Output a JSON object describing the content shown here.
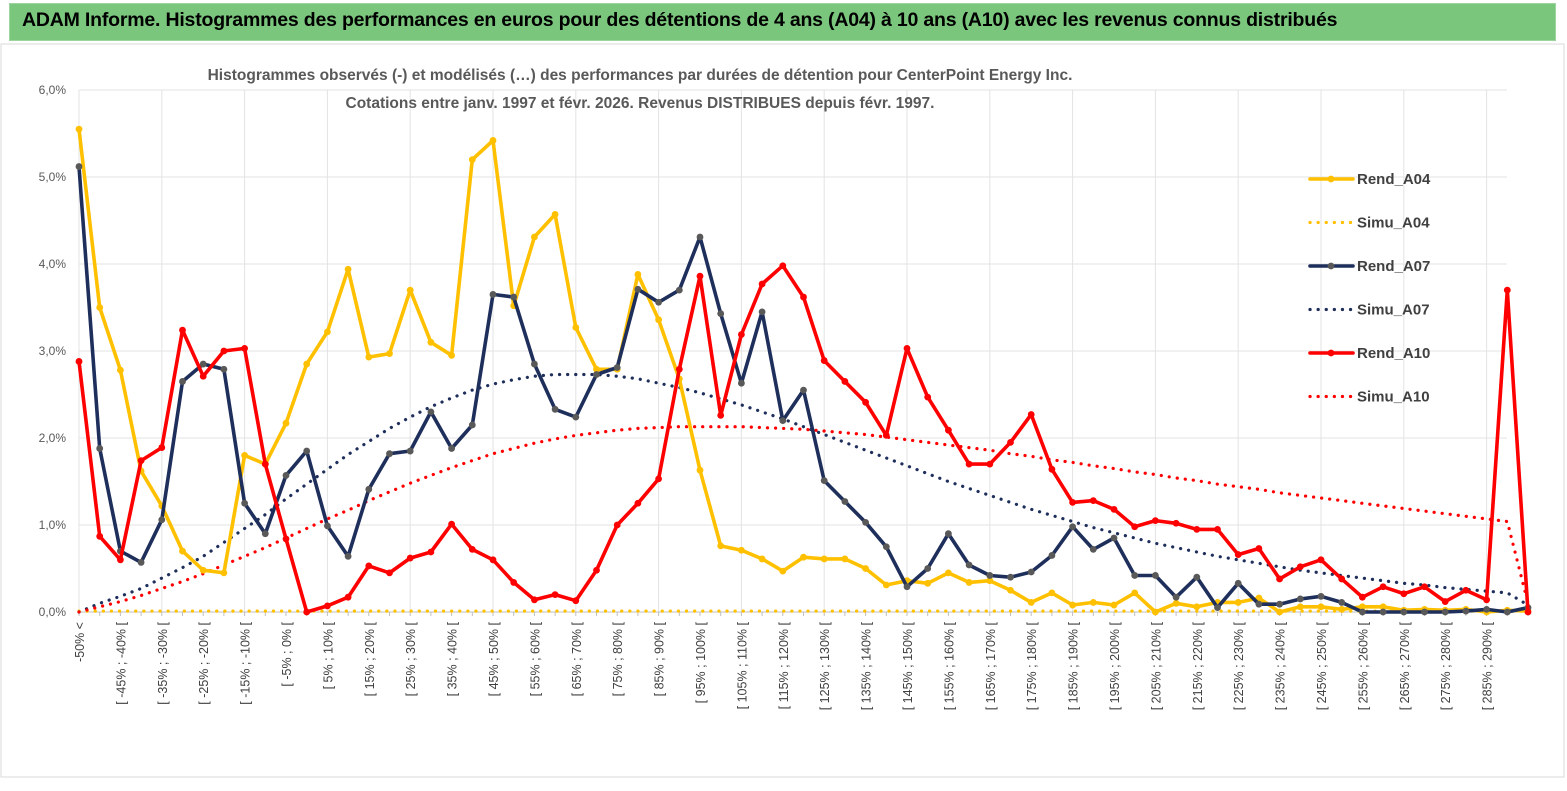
{
  "banner": {
    "title": "ADAM Informe. Histogrammes des performances en euros pour des détentions de 4 ans (A04) à 10 ans (A10) avec les revenus connus distribués"
  },
  "chart_data": {
    "type": "line",
    "title_line1": "Histogrammes observés (-) et modélisés (…) des performances par durées de détention pour CenterPoint Energy Inc.",
    "title_line2": "Cotations entre janv. 1997 et févr.  2026. Revenus DISTRIBUES depuis févr. 1997.",
    "ylim": [
      0,
      6
    ],
    "yticks": [
      "0,0%",
      "1,0%",
      "2,0%",
      "3,0%",
      "4,0%",
      "5,0%",
      "6,0%"
    ],
    "grid": true,
    "legend_position": "right",
    "x_labels": [
      "-50% <",
      "[ -45% ; -40% [",
      "[ -35% ; -30% [",
      "[ -25% ; -20% [",
      "[ -15% ; -10% [",
      "[ -5% ; 0% [",
      "[ 5% ; 10% [",
      "[ 15% ; 20% [",
      "[ 25% ; 30% [",
      "[ 35% ; 40% [",
      "[ 45% ; 50% [",
      "[ 55% ; 60% [",
      "[ 65% ; 70% [",
      "[ 75% ; 80% [",
      "[ 85% ; 90% [",
      "[ 95% ; 100% [",
      "[ 105% ; 110% [",
      "[ 115% ; 120% [",
      "[ 125% ; 130% [",
      "[ 135% ; 140% [",
      "[ 145% ; 150% [",
      "[ 155% ; 160% [",
      "[ 165% ; 170% [",
      "[ 175% ; 180% [",
      "[ 185% ; 190% [",
      "[ 195% ; 200% [",
      "[ 205% ; 210% [",
      "[ 215% ; 220% [",
      "[ 225% ; 230% [",
      "[ 235% ; 240% [",
      "[ 245% ; 250% [",
      "[ 255% ; 260% [",
      "[ 265% ; 270% [",
      "[ 275% ; 280% [",
      "[ 285% ; 290% ["
    ],
    "series": [
      {
        "name": "Rend_A04",
        "style": "solid",
        "markers": true,
        "color": "#ffc000",
        "values": [
          5.55,
          3.5,
          2.78,
          1.62,
          1.22,
          0.7,
          0.48,
          0.45,
          1.8,
          1.7,
          2.17,
          2.85,
          3.22,
          3.94,
          2.93,
          2.97,
          3.7,
          3.1,
          2.95,
          5.2,
          5.42,
          3.52,
          4.31,
          4.57,
          3.27,
          2.79,
          2.79,
          3.88,
          3.36,
          2.68,
          1.63,
          0.76,
          0.71,
          0.61,
          0.47,
          0.63,
          0.61,
          0.61,
          0.5,
          0.31,
          0.36,
          0.33,
          0.45,
          0.34,
          0.36,
          0.25,
          0.11,
          0.22,
          0.08,
          0.11,
          0.08,
          0.22,
          0.0,
          0.1,
          0.06,
          0.11,
          0.11,
          0.16,
          0.0,
          0.06,
          0.06,
          0.03,
          0.06,
          0.06,
          0.02,
          0.03,
          0.02,
          0.03,
          0.0,
          0.02,
          0.01
        ]
      },
      {
        "name": "Simu_A04",
        "style": "dotted",
        "markers": false,
        "color": "#ffc000",
        "values": [
          0.01,
          0.01,
          0.01,
          0.01,
          0.01,
          0.01,
          0.01,
          0.01,
          0.01,
          0.01,
          0.01,
          0.01,
          0.01,
          0.01,
          0.01,
          0.01,
          0.01,
          0.01,
          0.01,
          0.01,
          0.01,
          0.01,
          0.01,
          0.01,
          0.01,
          0.01,
          0.01,
          0.01,
          0.01,
          0.01,
          0.01,
          0.01,
          0.01,
          0.01,
          0.01,
          0.01,
          0.01,
          0.01,
          0.01,
          0.01,
          0.01,
          0.01,
          0.01,
          0.01,
          0.01,
          0.01,
          0.01,
          0.01,
          0.01,
          0.01,
          0.01,
          0.01,
          0.01,
          0.01,
          0.01,
          0.01,
          0.01,
          0.01,
          0.01,
          0.01,
          0.01,
          0.01,
          0.01,
          0.01,
          0.01,
          0.01,
          0.01,
          0.01,
          0.01,
          0.01,
          0.01
        ]
      },
      {
        "name": "Rend_A07",
        "style": "solid",
        "markers": true,
        "color": "#1f2f5c",
        "values": [
          5.12,
          1.88,
          0.7,
          0.57,
          1.06,
          2.65,
          2.85,
          2.79,
          1.25,
          0.9,
          1.57,
          1.85,
          0.99,
          0.64,
          1.41,
          1.82,
          1.85,
          2.3,
          1.88,
          2.15,
          3.65,
          3.62,
          2.85,
          2.33,
          2.24,
          2.73,
          2.81,
          3.71,
          3.56,
          3.7,
          4.31,
          3.43,
          2.63,
          3.45,
          2.2,
          2.55,
          1.51,
          1.27,
          1.03,
          0.75,
          0.29,
          0.5,
          0.9,
          0.54,
          0.42,
          0.4,
          0.46,
          0.65,
          0.98,
          0.72,
          0.85,
          0.42,
          0.42,
          0.17,
          0.4,
          0.05,
          0.33,
          0.09,
          0.09,
          0.15,
          0.18,
          0.11,
          0.0,
          0.0,
          0.0,
          0.0,
          0.0,
          0.01,
          0.03,
          0.0,
          0.05
        ]
      },
      {
        "name": "Simu_A07",
        "style": "dotted",
        "markers": false,
        "color": "#1f2f5c",
        "values": [
          0.0,
          0.1,
          0.18,
          0.27,
          0.39,
          0.51,
          0.64,
          0.8,
          0.96,
          1.12,
          1.3,
          1.47,
          1.64,
          1.81,
          1.96,
          2.11,
          2.24,
          2.36,
          2.46,
          2.55,
          2.62,
          2.67,
          2.71,
          2.73,
          2.73,
          2.73,
          2.71,
          2.68,
          2.63,
          2.58,
          2.52,
          2.45,
          2.38,
          2.3,
          2.22,
          2.13,
          2.04,
          1.95,
          1.86,
          1.77,
          1.68,
          1.59,
          1.5,
          1.42,
          1.34,
          1.26,
          1.18,
          1.11,
          1.04,
          0.97,
          0.91,
          0.85,
          0.79,
          0.74,
          0.69,
          0.64,
          0.6,
          0.56,
          0.52,
          0.48,
          0.45,
          0.42,
          0.39,
          0.36,
          0.33,
          0.31,
          0.28,
          0.26,
          0.24,
          0.22,
          0.08
        ]
      },
      {
        "name": "Rend_A10",
        "style": "solid",
        "markers": true,
        "color": "#ff0000",
        "values": [
          2.88,
          0.87,
          0.6,
          1.74,
          1.89,
          3.24,
          2.71,
          3.0,
          3.03,
          1.7,
          0.84,
          0.0,
          0.07,
          0.17,
          0.53,
          0.45,
          0.62,
          0.69,
          1.01,
          0.72,
          0.6,
          0.34,
          0.14,
          0.2,
          0.13,
          0.48,
          1.0,
          1.25,
          1.53,
          2.79,
          3.86,
          2.26,
          3.19,
          3.77,
          3.98,
          3.62,
          2.89,
          2.65,
          2.41,
          2.03,
          3.03,
          2.47,
          2.09,
          1.7,
          1.7,
          1.95,
          2.27,
          1.64,
          1.26,
          1.28,
          1.18,
          0.98,
          1.05,
          1.02,
          0.95,
          0.95,
          0.66,
          0.73,
          0.38,
          0.52,
          0.6,
          0.38,
          0.17,
          0.29,
          0.21,
          0.29,
          0.12,
          0.25,
          0.14,
          3.7,
          0.0
        ]
      },
      {
        "name": "Simu_A10",
        "style": "dotted",
        "markers": false,
        "color": "#ff0000",
        "values": [
          0.0,
          0.06,
          0.12,
          0.19,
          0.27,
          0.35,
          0.44,
          0.54,
          0.64,
          0.74,
          0.85,
          0.96,
          1.07,
          1.17,
          1.28,
          1.38,
          1.48,
          1.57,
          1.66,
          1.74,
          1.82,
          1.88,
          1.94,
          1.99,
          2.03,
          2.06,
          2.09,
          2.11,
          2.12,
          2.13,
          2.13,
          2.13,
          2.13,
          2.12,
          2.11,
          2.1,
          2.08,
          2.06,
          2.04,
          2.01,
          1.98,
          1.95,
          1.92,
          1.89,
          1.86,
          1.82,
          1.79,
          1.75,
          1.72,
          1.68,
          1.65,
          1.61,
          1.58,
          1.54,
          1.51,
          1.47,
          1.44,
          1.41,
          1.37,
          1.34,
          1.31,
          1.28,
          1.25,
          1.22,
          1.19,
          1.16,
          1.13,
          1.1,
          1.07,
          1.04,
          0.1
        ]
      }
    ]
  }
}
